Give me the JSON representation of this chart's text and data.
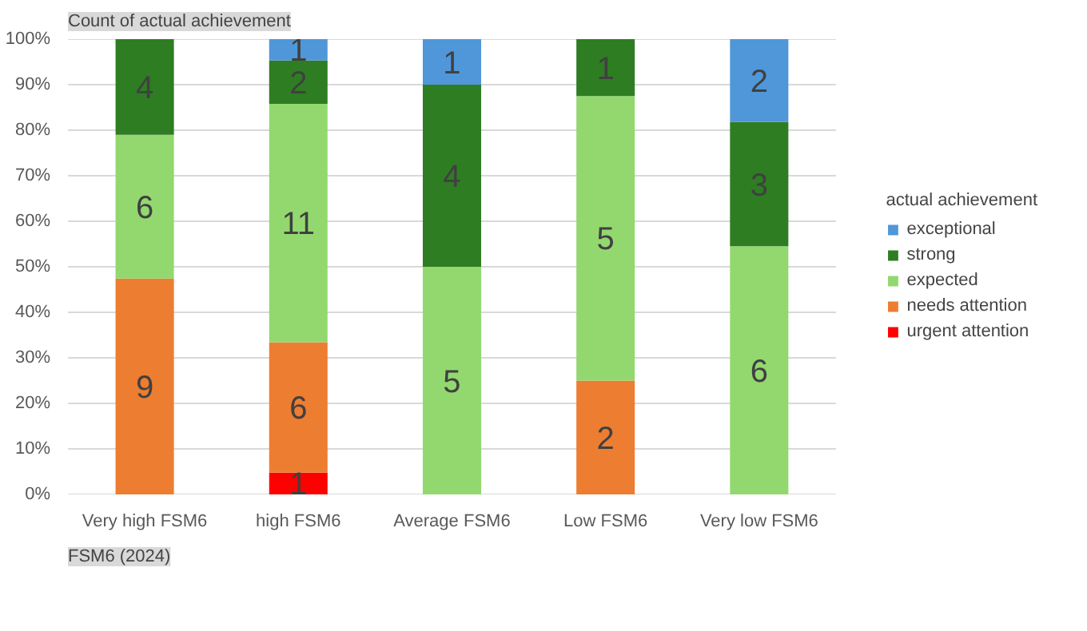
{
  "chart_data": {
    "type": "bar",
    "stacked": true,
    "title": "Count of actual achievement",
    "xlabel": "FSM6 (2024)",
    "legend_title": "actual achievement",
    "legend": "right",
    "grid": "y",
    "categories": [
      "Very high FSM6",
      "high FSM6",
      "Average FSM6",
      "Low FSM6",
      "Very low FSM6"
    ],
    "ylim": [
      0,
      100
    ],
    "yticks": [
      {
        "value": 0,
        "label": "0%"
      },
      {
        "value": 10,
        "label": "10%"
      },
      {
        "value": 20,
        "label": "20%"
      },
      {
        "value": 30,
        "label": "30%"
      },
      {
        "value": 40,
        "label": "40%"
      },
      {
        "value": 50,
        "label": "50%"
      },
      {
        "value": 60,
        "label": "60%"
      },
      {
        "value": 70,
        "label": "70%"
      },
      {
        "value": 80,
        "label": "80%"
      },
      {
        "value": 90,
        "label": "90%"
      },
      {
        "value": 100,
        "label": "100%"
      }
    ],
    "series": [
      {
        "name": "urgent attention",
        "color": "#ff0000",
        "values": [
          null,
          4.8,
          null,
          null,
          null
        ]
      },
      {
        "name": "needs attention",
        "color": "#ed7d31",
        "values": [
          47.4,
          28.6,
          null,
          25,
          null
        ]
      },
      {
        "name": "expected",
        "color": "#92d86f",
        "values": [
          31.6,
          52.4,
          50,
          62.5,
          54.5
        ]
      },
      {
        "name": "strong",
        "color": "#2e7d22",
        "values": [
          21.1,
          9.5,
          40,
          12.5,
          27.3
        ]
      },
      {
        "name": "exceptional",
        "color": "#4f97d9",
        "values": [
          null,
          4.8,
          10,
          null,
          18.2
        ]
      }
    ],
    "annotations": [
      "9",
      "6",
      "4",
      "1",
      "6",
      "11",
      "2",
      "1",
      "5",
      "4",
      "1",
      "2",
      "5",
      "1",
      "6",
      "3",
      "2"
    ]
  }
}
